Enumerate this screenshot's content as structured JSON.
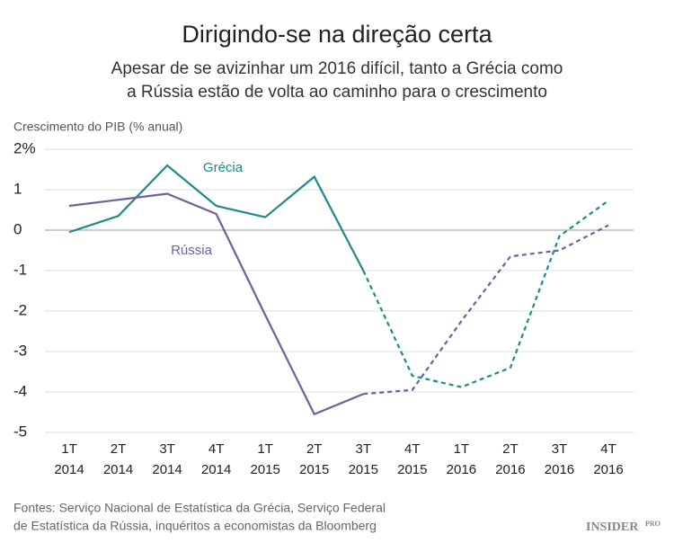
{
  "chart_data": {
    "type": "line",
    "title": "Dirigindo-se na direção certa",
    "subtitle": [
      "Apesar de se avizinhar um 2016 difícil, tanto a Grécia como",
      "a Rússia estão de volta ao caminho para o crescimento"
    ],
    "y_axis_title": "Crescimento do PIB (% anual)",
    "categories": [
      [
        "1T",
        "2014"
      ],
      [
        "2T",
        "2014"
      ],
      [
        "3T",
        "2014"
      ],
      [
        "4T",
        "2014"
      ],
      [
        "1T",
        "2015"
      ],
      [
        "2T",
        "2015"
      ],
      [
        "3T",
        "2015"
      ],
      [
        "4T",
        "2015"
      ],
      [
        "1T",
        "2016"
      ],
      [
        "2T",
        "2016"
      ],
      [
        "3T",
        "2016"
      ],
      [
        "4T",
        "2016"
      ]
    ],
    "ylim": [
      -5,
      2
    ],
    "yticks": [
      {
        "value": 2,
        "label": "2%"
      },
      1,
      0,
      -1,
      -2,
      -3,
      -4,
      -5
    ],
    "grid": true,
    "series": [
      {
        "name": "Grécia",
        "color": "#1f8a8a",
        "values": [
          -0.05,
          0.35,
          1.6,
          0.6,
          0.32,
          1.32,
          -1.0,
          null,
          null,
          null,
          null,
          null
        ],
        "forecast": [
          null,
          null,
          null,
          null,
          null,
          null,
          -1.0,
          -3.6,
          -3.88,
          -3.4,
          -0.15,
          0.73
        ]
      },
      {
        "name": "Rússia",
        "color": "#6e5f9e",
        "values": [
          0.6,
          0.75,
          0.9,
          0.4,
          -2.1,
          -4.55,
          -4.05,
          null,
          null,
          null,
          null,
          null
        ],
        "forecast": [
          null,
          null,
          null,
          null,
          null,
          null,
          -4.05,
          -3.95,
          -2.25,
          -0.65,
          -0.5,
          0.12
        ]
      }
    ],
    "source": [
      "Fontes: Serviço Nacional de Estatística da Grécia, Serviço Federal",
      "de Estatística da Rússia, inquéritos a economistas da Bloomberg"
    ],
    "logo": [
      "INSIDER",
      "PRO"
    ]
  }
}
